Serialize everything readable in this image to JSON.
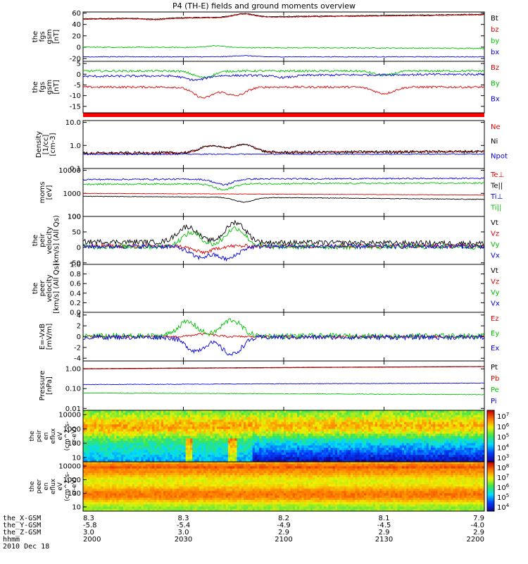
{
  "title": "P4 (TH-E) fields and ground moments overview",
  "chart_data": {
    "type": "line",
    "x_ticks": [
      "2000",
      "2030",
      "2100",
      "2130",
      "2200"
    ],
    "x_label_date": "2010 Dec 18",
    "ephemeris_rows": [
      {
        "label": "the_X-GSM",
        "values": [
          "8.3",
          "8.3",
          "8.2",
          "8.1",
          "7.9"
        ]
      },
      {
        "label": "the_Y-GSM",
        "values": [
          "-5.8",
          "-5.4",
          "-4.9",
          "-4.5",
          "-4.0"
        ]
      },
      {
        "label": "the_Z-GSM",
        "values": [
          "3.0",
          "3.0",
          "2.9",
          "2.9",
          "2.9"
        ]
      },
      {
        "label": "hhmm",
        "values": []
      }
    ],
    "panels": [
      {
        "ylabel": [
          "the",
          "fgs",
          "gsm",
          "[nT]"
        ],
        "yticks": [
          "60",
          "40",
          "20",
          "0",
          "-20"
        ],
        "ylim": [
          -25,
          62
        ],
        "series": [
          {
            "name": "Bt",
            "color": "#000000",
            "base": 50,
            "noise": 0.6,
            "events": [
              [
                0.18,
                -2
              ],
              [
                0.4,
                6
              ]
            ],
            "trend": 8
          },
          {
            "name": "bz",
            "color": "#e00000",
            "base": 49,
            "noise": 0.6,
            "events": [
              [
                0.18,
                -2
              ],
              [
                0.4,
                6
              ]
            ],
            "trend": 8
          },
          {
            "name": "by",
            "color": "#00c000",
            "base": 0,
            "noise": 0.8,
            "events": [
              [
                0.33,
                3
              ]
            ],
            "trend": -2
          },
          {
            "name": "bx",
            "color": "#0000e0",
            "base": -17,
            "noise": 0.6,
            "events": [
              [
                0.4,
                2
              ]
            ],
            "trend": 0
          }
        ]
      },
      {
        "ylabel": [
          "the",
          "fgs",
          "gsm",
          "[nT]"
        ],
        "yticks": [
          "5",
          "0",
          "-5",
          "-10",
          "-15"
        ],
        "ylim": [
          -18,
          6
        ],
        "series": [
          {
            "name": "Bz",
            "color": "#e00000",
            "base": -6,
            "noise": 0.5,
            "events": [
              [
                0.3,
                -5
              ],
              [
                0.38,
                -4
              ],
              [
                0.75,
                -3
              ]
            ],
            "trend": 0
          },
          {
            "name": "By",
            "color": "#00c000",
            "base": 1.5,
            "noise": 0.5,
            "events": [
              [
                0.3,
                -3
              ],
              [
                0.75,
                -2
              ]
            ],
            "trend": 0
          },
          {
            "name": "Bx",
            "color": "#0000e0",
            "base": -1,
            "noise": 0.5,
            "events": [
              [
                0.28,
                -2
              ],
              [
                0.5,
                -1
              ]
            ],
            "trend": 1
          }
        ]
      },
      {
        "ylabel": [
          "Density",
          "[1/cc]",
          "[cm-3]"
        ],
        "yticks": [
          "10.0",
          "1.0",
          "0.1"
        ],
        "log": true,
        "ylim": [
          0.1,
          12
        ],
        "series": [
          {
            "name": "Ne",
            "color": "#e00000",
            "base": 0.45,
            "noise": 0.05,
            "events": [
              [
                0.32,
                0.5
              ],
              [
                0.4,
                0.6
              ]
            ],
            "trend": 0.1
          },
          {
            "name": "Ni",
            "color": "#000000",
            "base": 0.45,
            "noise": 0.08,
            "events": [
              [
                0.32,
                0.5
              ],
              [
                0.4,
                0.6
              ]
            ],
            "trend": 0.1
          },
          {
            "name": "Npot",
            "color": "#0000e0",
            "base": 0.42,
            "noise": 0.02,
            "events": [],
            "trend": 0
          }
        ]
      },
      {
        "ylabel": [
          "moms",
          "[eV]"
        ],
        "yticks": [
          "10000",
          "1000",
          "100"
        ],
        "log": true,
        "ylim": [
          100,
          12000
        ],
        "series": [
          {
            "name": "Te⊥",
            "color": "#e00000",
            "base": 1000,
            "noise": 20,
            "events": [],
            "trend": -150
          },
          {
            "name": "Te||",
            "color": "#000000",
            "base": 750,
            "noise": 20,
            "events": [
              [
                0.4,
                -250
              ]
            ],
            "trend": -200
          },
          {
            "name": "Ti⊥",
            "color": "#0000e0",
            "base": 4000,
            "noise": 300,
            "events": [
              [
                0.35,
                -1800
              ]
            ],
            "trend": 500
          },
          {
            "name": "Ti||",
            "color": "#00c000",
            "base": 2500,
            "noise": 200,
            "events": [
              [
                0.35,
                -1200
              ]
            ],
            "trend": 300
          }
        ]
      },
      {
        "ylabel": [
          "the",
          "peir",
          "velocity",
          "[km/s] (All Qs)"
        ],
        "yticks": [
          "100",
          "50",
          "0",
          "-50"
        ],
        "ylim": [
          -55,
          100
        ],
        "series": [
          {
            "name": "Vt",
            "color": "#000000",
            "base": 18,
            "noise": 8,
            "events": [
              [
                0.26,
                50
              ],
              [
                0.38,
                65
              ]
            ],
            "trend": -5
          },
          {
            "name": "Vz",
            "color": "#e00000",
            "base": 4,
            "noise": 6,
            "events": [
              [
                0.3,
                -20
              ]
            ],
            "trend": 0
          },
          {
            "name": "Vy",
            "color": "#00c000",
            "base": 2,
            "noise": 8,
            "events": [
              [
                0.27,
                45
              ],
              [
                0.38,
                60
              ]
            ],
            "trend": 0
          },
          {
            "name": "Vx",
            "color": "#0000e0",
            "base": 3,
            "noise": 7,
            "events": [
              [
                0.29,
                -35
              ],
              [
                0.36,
                -40
              ]
            ],
            "trend": 0
          }
        ]
      },
      {
        "ylabel": [
          "the",
          "peer",
          "velocity",
          "[km/s] (All Qs)"
        ],
        "yticks": [
          "1.0",
          "0.8",
          "0.6",
          "0.4",
          "0.2",
          "0.0"
        ],
        "ylim": [
          0,
          1
        ],
        "series": [
          {
            "name": "Vt",
            "color": "#000000"
          },
          {
            "name": "Vz",
            "color": "#e00000"
          },
          {
            "name": "Vy",
            "color": "#00c000"
          },
          {
            "name": "Vx",
            "color": "#0000e0"
          }
        ]
      },
      {
        "ylabel": [
          "E=-VxB",
          "[mV/m]"
        ],
        "yticks": [
          "4",
          "2",
          "0",
          "-2",
          "-4"
        ],
        "ylim": [
          -4.5,
          4.5
        ],
        "series": [
          {
            "name": "Ez",
            "color": "#e00000",
            "base": 0,
            "noise": 0.2,
            "events": [
              [
                0.3,
                0.5
              ]
            ],
            "trend": 0
          },
          {
            "name": "Ey",
            "color": "#00c000",
            "base": 0.1,
            "noise": 0.5,
            "events": [
              [
                0.26,
                2.6
              ],
              [
                0.37,
                3.0
              ]
            ],
            "trend": 0
          },
          {
            "name": "Ex",
            "color": "#0000e0",
            "base": -0.1,
            "noise": 0.45,
            "events": [
              [
                0.28,
                -2.5
              ],
              [
                0.37,
                -3.2
              ]
            ],
            "trend": 0
          }
        ]
      },
      {
        "ylabel": [
          "Pressure",
          "[nPa]"
        ],
        "yticks": [
          "1.00",
          "0.10",
          "0.01"
        ],
        "log": true,
        "ylim": [
          0.008,
          2.5
        ],
        "series": [
          {
            "name": "Pt",
            "color": "#000000",
            "base": 1.02,
            "noise": 0.01,
            "events": [],
            "trend": 0.3
          },
          {
            "name": "Pb",
            "color": "#e00000",
            "base": 0.98,
            "noise": 0.01,
            "events": [],
            "trend": 0.3
          },
          {
            "name": "Pe",
            "color": "#00c000",
            "base": 0.06,
            "noise": 0.002,
            "events": [],
            "trend": -0.01
          },
          {
            "name": "Pi",
            "color": "#0000e0",
            "base": 0.16,
            "noise": 0.005,
            "events": [],
            "trend": 0.03
          }
        ]
      }
    ],
    "spectra": [
      {
        "ylabel": [
          "the",
          "peir",
          "en",
          "eflux",
          "eV",
          "(cm^2-s-",
          "sr-eV)"
        ],
        "yticks": [
          "10000",
          "1000",
          "100",
          "10"
        ],
        "cbar_ticks": [
          "10^7",
          "10^6",
          "10^5",
          "10^4",
          "10^3"
        ]
      },
      {
        "ylabel": [
          "the",
          "peer",
          "en",
          "eflux",
          "eV",
          "(cm^2-s-",
          "sr-eV)"
        ],
        "yticks": [
          "10000",
          "1000",
          "100",
          "10"
        ],
        "cbar_ticks": [
          "10^8",
          "10^7",
          "10^6",
          "10^5",
          "10^4"
        ]
      }
    ]
  }
}
